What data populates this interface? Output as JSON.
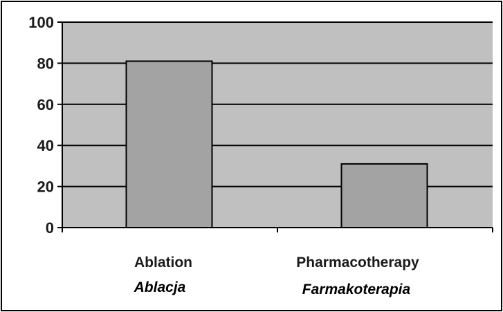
{
  "chart_data": {
    "type": "bar",
    "categories": [
      "Ablation",
      "Pharmacotherapy"
    ],
    "categories_secondary": [
      "Ablacja",
      "Farmakoterapia"
    ],
    "values": [
      81,
      31
    ],
    "ylim": [
      0,
      100
    ],
    "yticks": [
      "0",
      "20",
      "40",
      "60",
      "80",
      "100"
    ],
    "grid": true,
    "legend": "none",
    "colors": {
      "plot_background": "#c0c0c0",
      "bar_fill": "#a3a3a3",
      "bar_stroke": "#000000",
      "grid": "#000000"
    }
  }
}
